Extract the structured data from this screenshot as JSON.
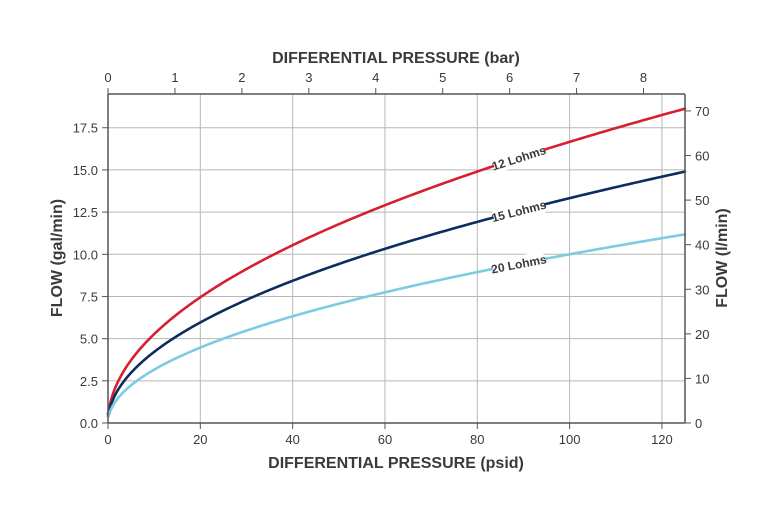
{
  "chart_data": {
    "type": "line",
    "xlabel": "DIFFERENTIAL PRESSURE (psid)",
    "ylabel": "FLOW (gal/min)",
    "x2label": "DIFFERENTIAL PRESSURE (bar)",
    "y2label": "FLOW (l/min)",
    "xlim": [
      0,
      125
    ],
    "ylim": [
      0,
      19.5
    ],
    "x2lim": [
      0,
      8.62
    ],
    "y2lim": [
      0,
      73.8
    ],
    "xticks": [
      0,
      20,
      40,
      60,
      80,
      100,
      120
    ],
    "yticks": [
      "0.0",
      "2.5",
      "5.0",
      "7.5",
      "10.0",
      "12.5",
      "15.0",
      "17.5"
    ],
    "x2ticks": [
      0,
      1,
      2,
      3,
      4,
      5,
      6,
      7,
      8
    ],
    "y2ticks": [
      0,
      10,
      20,
      30,
      40,
      50,
      60,
      70
    ],
    "grid": true,
    "series": [
      {
        "name": "12 Lohms",
        "color": "#d6202f",
        "x": [
          0,
          1,
          5,
          10,
          20,
          30,
          40,
          50,
          60,
          70,
          80,
          90,
          100,
          110,
          120,
          125
        ],
        "y": [
          0.6,
          1.67,
          3.73,
          5.27,
          7.45,
          9.13,
          10.54,
          11.78,
          12.91,
          13.94,
          14.9,
          15.81,
          16.66,
          17.47,
          18.25,
          18.63
        ],
        "label_at_x": 89
      },
      {
        "name": "15 Lohms",
        "color": "#0c2d5e",
        "x": [
          0,
          1,
          5,
          10,
          20,
          30,
          40,
          50,
          60,
          70,
          80,
          90,
          100,
          110,
          120,
          125
        ],
        "y": [
          0.5,
          1.33,
          2.98,
          4.22,
          5.96,
          7.3,
          8.43,
          9.43,
          10.33,
          11.15,
          11.92,
          12.65,
          13.33,
          13.98,
          14.6,
          14.9
        ],
        "label_at_x": 89
      },
      {
        "name": "20 Lohms",
        "color": "#7dcbe2",
        "x": [
          0,
          1,
          5,
          10,
          20,
          30,
          40,
          50,
          60,
          70,
          80,
          90,
          100,
          110,
          120,
          125
        ],
        "y": [
          0.4,
          1.0,
          2.24,
          3.16,
          4.47,
          5.48,
          6.32,
          7.07,
          7.75,
          8.37,
          8.94,
          9.49,
          10.0,
          10.49,
          10.95,
          11.18
        ],
        "label_at_x": 89
      }
    ]
  }
}
